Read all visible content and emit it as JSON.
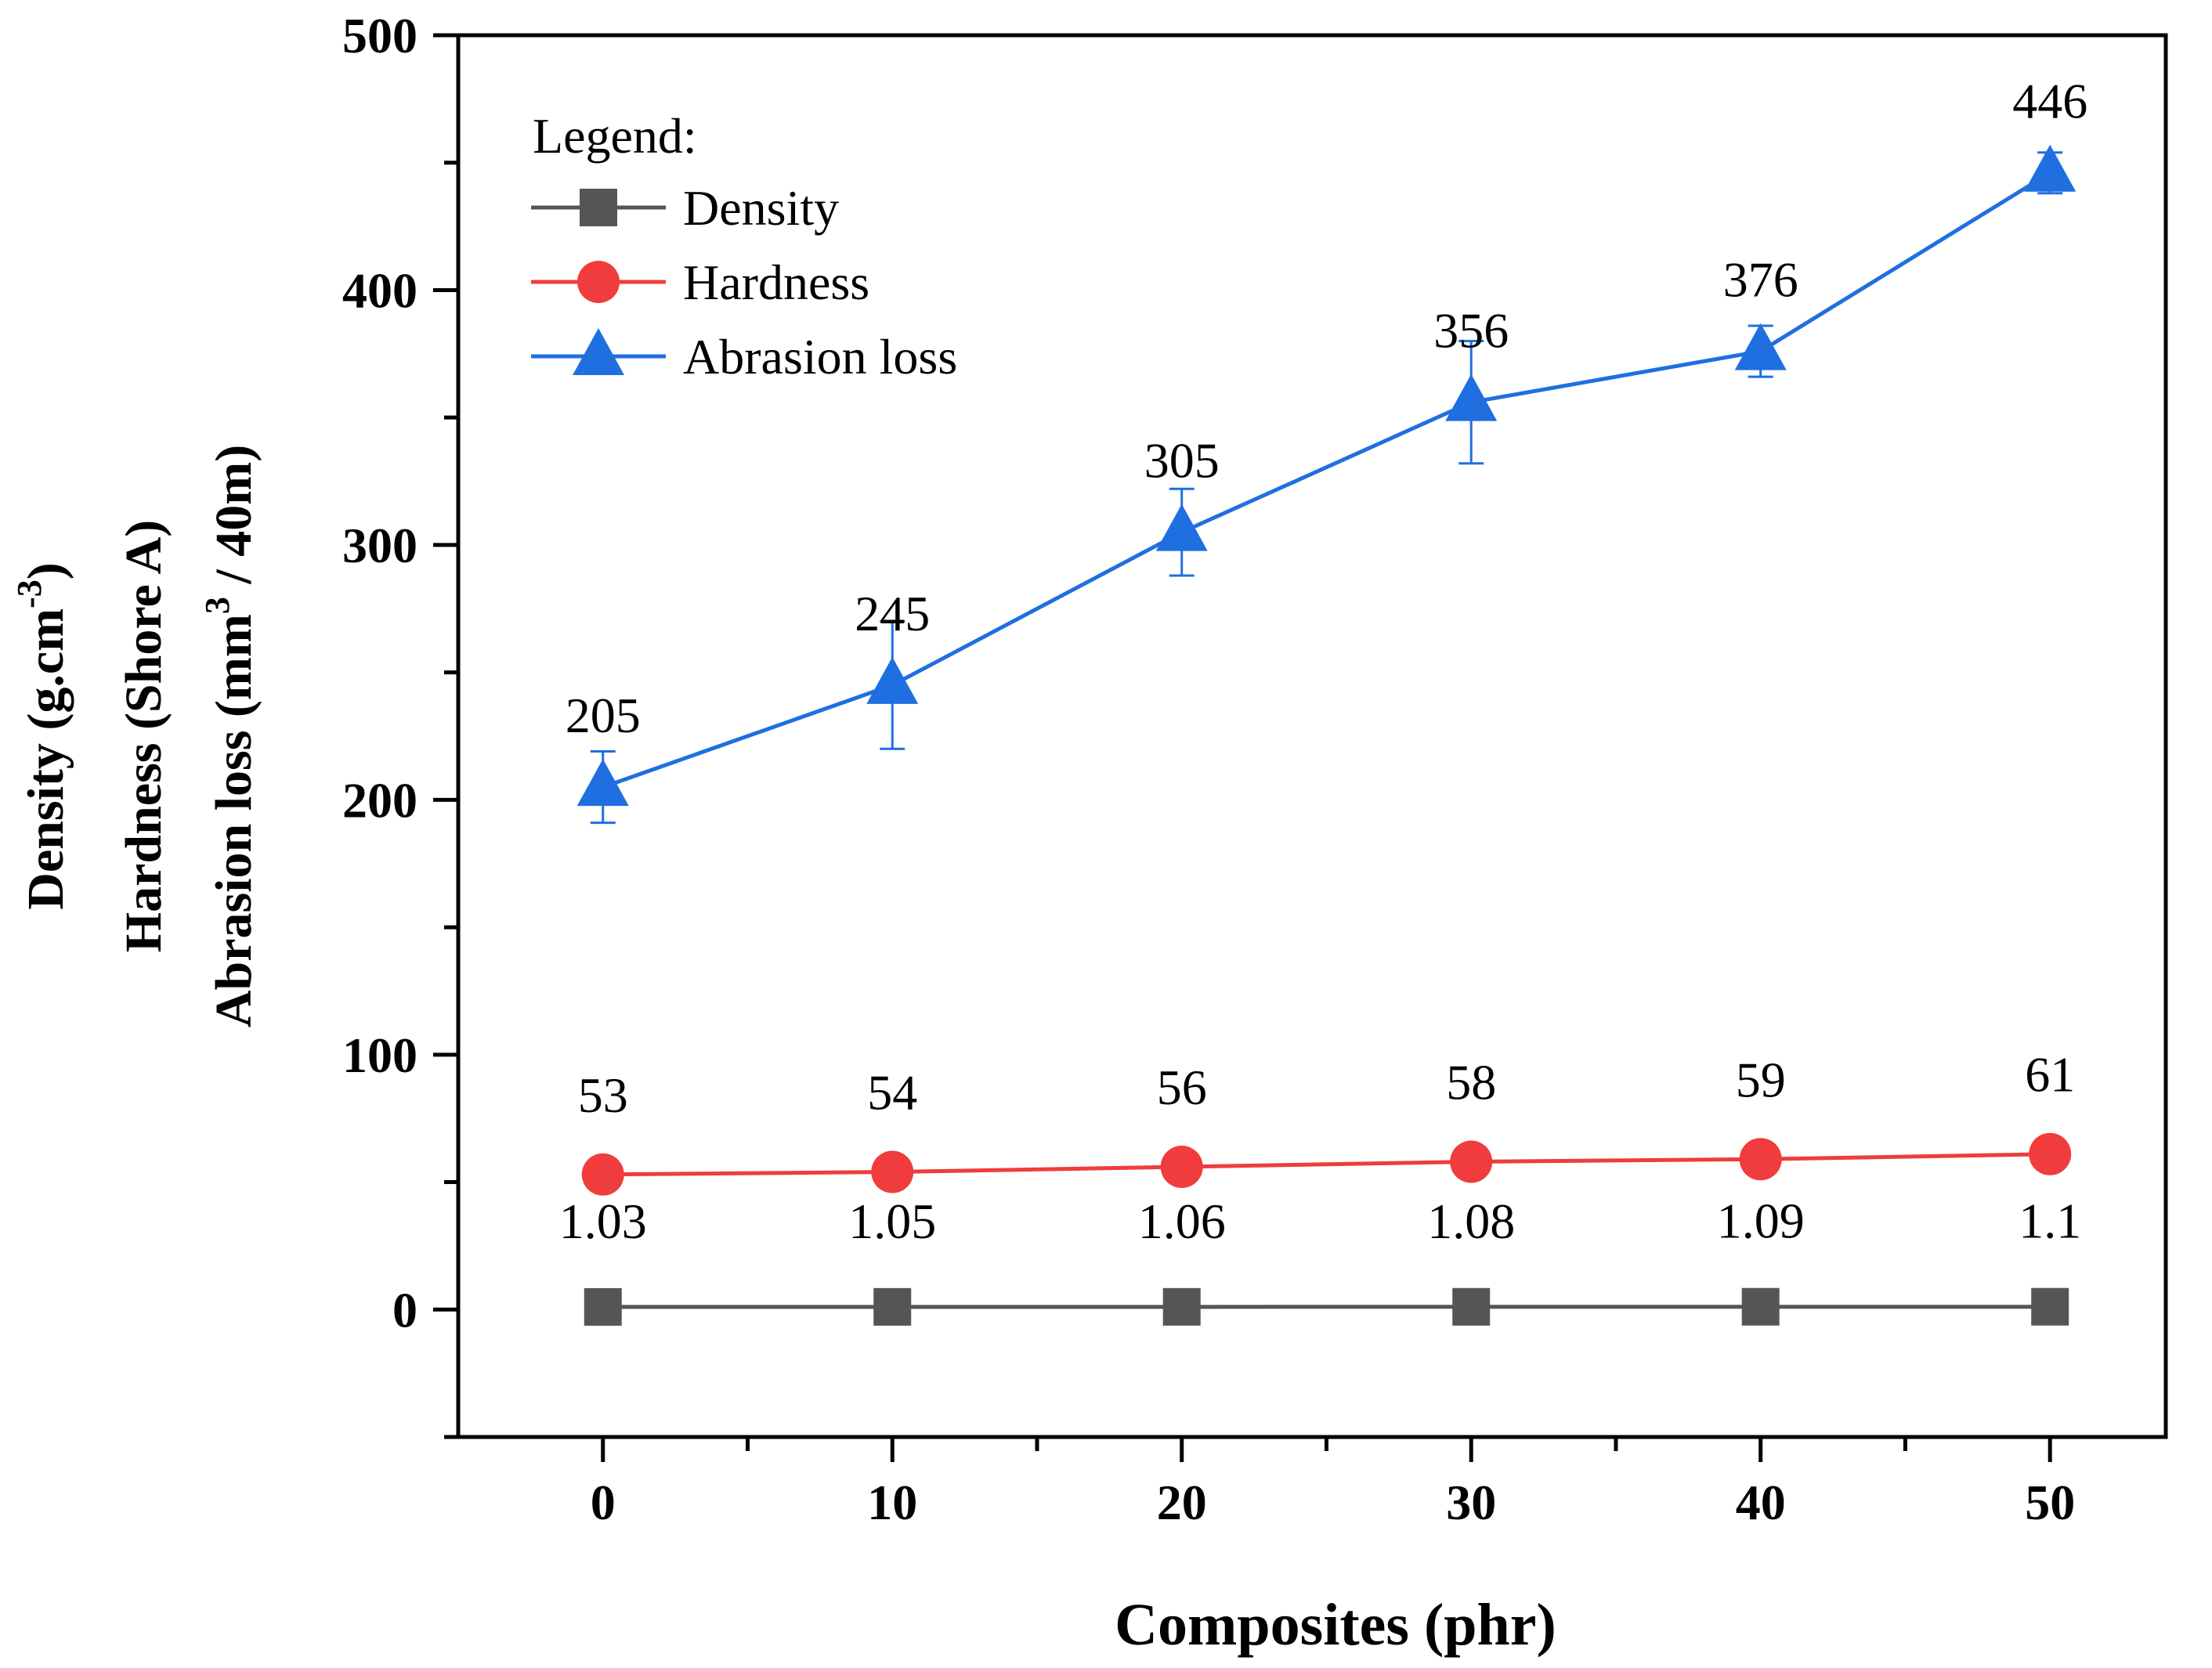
{
  "chart_data": {
    "type": "line",
    "x": [
      0,
      10,
      20,
      30,
      40,
      50
    ],
    "xlabel": "Composites (phr)",
    "ylabel_lines": [
      {
        "text": "Density (g.cm",
        "sup": "-3",
        "after": ")"
      },
      {
        "text": "Hardness (Shore A)",
        "sup": "",
        "after": ""
      },
      {
        "text": "Abrasion loss (mm",
        "sup": "3",
        "after": " / 40m)"
      }
    ],
    "xlim": [
      -5,
      54
    ],
    "ylim": [
      -50,
      500
    ],
    "xticks": [
      0,
      10,
      20,
      30,
      40,
      50
    ],
    "yticks": [
      0,
      100,
      200,
      300,
      400,
      500
    ],
    "grid": false,
    "legend": {
      "title": "Legend:",
      "position": "top-left"
    },
    "series": [
      {
        "name": "Density",
        "color": "#555555",
        "marker": "square",
        "values": [
          1.03,
          1.05,
          1.06,
          1.08,
          1.09,
          1.1
        ],
        "labels": [
          "1.03",
          "1.05",
          "1.06",
          "1.08",
          "1.09",
          "1.1"
        ]
      },
      {
        "name": "Hardness",
        "color": "#f03c3c",
        "marker": "circle",
        "values": [
          53,
          54,
          56,
          58,
          59,
          61
        ],
        "labels": [
          "53",
          "54",
          "56",
          "58",
          "59",
          "61"
        ]
      },
      {
        "name": "Abrasion loss",
        "color": "#1f6fe0",
        "marker": "triangle",
        "values": [
          205,
          245,
          305,
          356,
          376,
          446
        ],
        "errors": [
          14,
          25,
          17,
          24,
          10,
          8
        ],
        "labels": [
          "205",
          "245",
          "305",
          "356",
          "376",
          "446"
        ]
      }
    ]
  }
}
